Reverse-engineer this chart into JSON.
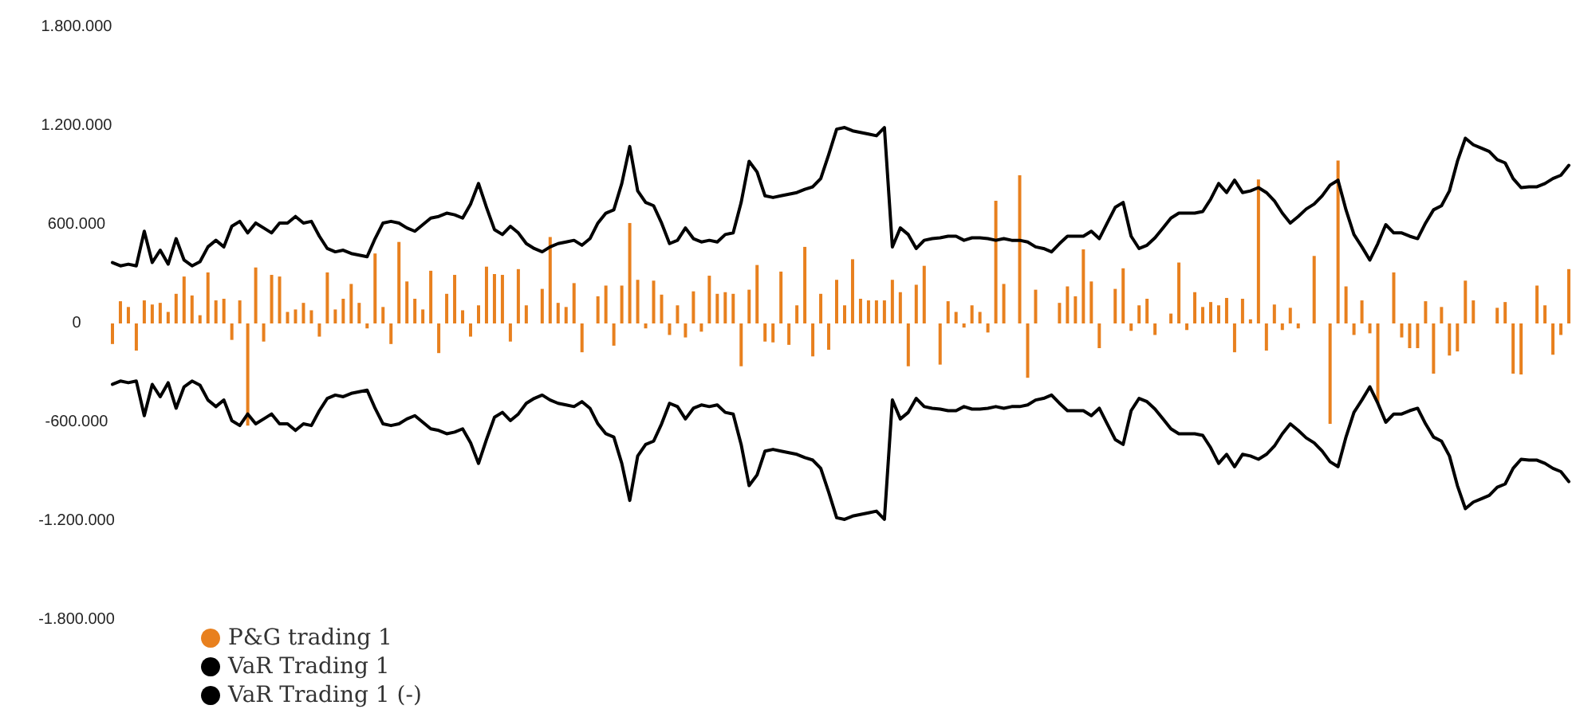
{
  "chart_data": {
    "type": "bar",
    "categories": [
      null,
      null,
      null,
      null,
      null,
      null,
      null,
      null,
      null,
      null,
      null,
      null,
      null,
      null,
      null,
      null,
      null,
      null,
      null,
      null,
      null,
      null,
      null,
      null,
      null,
      null,
      null,
      null,
      null,
      null,
      null,
      null,
      null,
      null,
      null,
      null,
      null,
      null,
      null,
      null,
      null,
      null,
      null,
      null,
      null,
      null,
      null,
      null,
      null,
      null,
      null,
      null,
      null,
      null,
      null,
      null,
      null,
      null,
      null,
      null,
      null,
      null,
      null,
      null,
      null,
      null,
      null,
      null,
      null,
      null,
      null,
      null,
      null,
      null,
      null,
      null,
      null,
      null,
      null,
      null,
      null,
      null,
      null,
      null,
      null,
      null,
      null,
      null,
      null,
      null,
      null,
      null,
      null,
      null,
      null,
      null,
      null,
      null,
      null,
      null,
      null,
      null,
      null,
      null,
      null,
      null,
      null,
      null,
      null,
      null,
      null,
      null,
      null,
      null,
      null,
      null,
      null,
      null,
      null,
      null,
      null,
      null,
      null,
      null,
      null,
      null,
      null,
      null,
      null,
      null,
      null,
      null,
      null,
      null,
      null,
      null,
      null,
      null,
      null,
      null,
      null,
      null,
      null,
      null,
      null,
      null,
      null,
      null,
      null,
      null,
      null,
      null,
      null,
      null,
      null,
      null,
      null,
      null,
      null,
      null,
      null,
      null,
      null,
      null,
      null,
      null,
      null,
      null,
      null,
      null,
      null,
      null,
      null,
      null,
      null,
      null,
      null,
      null,
      null,
      null,
      null,
      null,
      null,
      null
    ],
    "series": [
      {
        "name": "P&G trading 1",
        "color": "#e8801e",
        "values": [
          -125000,
          135000,
          100000,
          -165000,
          140000,
          115000,
          125000,
          70000,
          180000,
          285000,
          170000,
          50000,
          310000,
          140000,
          150000,
          -100000,
          140000,
          -620000,
          340000,
          -110000,
          295000,
          285000,
          70000,
          85000,
          125000,
          80000,
          -80000,
          310000,
          85000,
          150000,
          240000,
          125000,
          -30000,
          425000,
          100000,
          -125000,
          495000,
          255000,
          150000,
          85000,
          320000,
          -180000,
          180000,
          295000,
          80000,
          -80000,
          110000,
          345000,
          300000,
          295000,
          -110000,
          330000,
          110000,
          0,
          210000,
          525000,
          125000,
          100000,
          245000,
          -175000,
          0,
          165000,
          230000,
          -135000,
          230000,
          610000,
          265000,
          -30000,
          260000,
          175000,
          -70000,
          110000,
          -85000,
          195000,
          -50000,
          290000,
          180000,
          190000,
          180000,
          -260000,
          205000,
          355000,
          -110000,
          -115000,
          315000,
          -130000,
          110000,
          465000,
          -200000,
          180000,
          -160000,
          265000,
          110000,
          390000,
          150000,
          140000,
          140000,
          140000,
          265000,
          190000,
          -260000,
          235000,
          350000,
          0,
          -250000,
          135000,
          70000,
          -25000,
          110000,
          70000,
          -55000,
          745000,
          240000,
          0,
          900000,
          -330000,
          205000,
          0,
          0,
          125000,
          225000,
          165000,
          450000,
          255000,
          -150000,
          0,
          210000,
          335000,
          -45000,
          110000,
          150000,
          -70000,
          0,
          60000,
          370000,
          -40000,
          190000,
          100000,
          130000,
          110000,
          155000,
          -175000,
          150000,
          25000,
          875000,
          -165000,
          115000,
          -40000,
          95000,
          -30000,
          0,
          410000,
          0,
          -610000,
          990000,
          225000,
          -70000,
          140000,
          -60000,
          -485000,
          0,
          310000,
          -85000,
          -150000,
          -150000,
          135000,
          -305000,
          100000,
          -195000,
          -170000,
          260000,
          140000,
          0,
          0,
          95000,
          130000,
          -305000,
          -310000,
          0,
          230000,
          110000,
          -190000,
          -70000,
          330000
        ]
      },
      {
        "name": "VaR Trading 1",
        "type": "line",
        "color": "#000000",
        "values": [
          370000,
          350000,
          360000,
          350000,
          560000,
          370000,
          445000,
          360000,
          515000,
          385000,
          350000,
          375000,
          465000,
          505000,
          465000,
          590000,
          620000,
          550000,
          610000,
          580000,
          550000,
          610000,
          610000,
          650000,
          610000,
          620000,
          530000,
          455000,
          435000,
          445000,
          425000,
          415000,
          405000,
          515000,
          610000,
          620000,
          610000,
          580000,
          560000,
          600000,
          640000,
          650000,
          670000,
          660000,
          640000,
          725000,
          850000,
          705000,
          570000,
          540000,
          590000,
          550000,
          485000,
          455000,
          435000,
          465000,
          485000,
          495000,
          505000,
          475000,
          515000,
          610000,
          670000,
          690000,
          850000,
          1075000,
          805000,
          735000,
          715000,
          610000,
          485000,
          505000,
          580000,
          515000,
          495000,
          505000,
          495000,
          540000,
          550000,
          735000,
          985000,
          920000,
          775000,
          765000,
          775000,
          785000,
          795000,
          815000,
          830000,
          880000,
          1025000,
          1180000,
          1190000,
          1170000,
          1160000,
          1150000,
          1140000,
          1190000,
          465000,
          580000,
          540000,
          455000,
          505000,
          515000,
          520000,
          530000,
          530000,
          505000,
          520000,
          520000,
          515000,
          505000,
          515000,
          505000,
          505000,
          495000,
          465000,
          455000,
          435000,
          485000,
          530000,
          530000,
          530000,
          560000,
          515000,
          610000,
          705000,
          735000,
          530000,
          455000,
          475000,
          520000,
          580000,
          640000,
          670000,
          670000,
          670000,
          680000,
          755000,
          850000,
          795000,
          870000,
          795000,
          805000,
          825000,
          795000,
          745000,
          670000,
          610000,
          650000,
          695000,
          725000,
          775000,
          840000,
          870000,
          690000,
          540000,
          465000,
          385000,
          485000,
          600000,
          550000,
          550000,
          530000,
          515000,
          610000,
          690000,
          715000,
          805000,
          985000,
          1125000,
          1085000,
          1065000,
          1045000,
          995000,
          975000,
          880000,
          825000,
          830000,
          830000,
          850000,
          880000,
          900000,
          960000
        ]
      },
      {
        "name": "VaR Trading 1 (-)",
        "type": "line",
        "color": "#000000",
        "values": [
          -370000,
          -350000,
          -360000,
          -350000,
          -560000,
          -370000,
          -445000,
          -360000,
          -515000,
          -385000,
          -350000,
          -375000,
          -465000,
          -505000,
          -465000,
          -590000,
          -620000,
          -550000,
          -610000,
          -580000,
          -550000,
          -610000,
          -610000,
          -650000,
          -610000,
          -620000,
          -530000,
          -455000,
          -435000,
          -445000,
          -425000,
          -415000,
          -405000,
          -515000,
          -610000,
          -620000,
          -610000,
          -580000,
          -560000,
          -600000,
          -640000,
          -650000,
          -670000,
          -660000,
          -640000,
          -725000,
          -850000,
          -705000,
          -570000,
          -540000,
          -590000,
          -550000,
          -485000,
          -455000,
          -435000,
          -465000,
          -485000,
          -495000,
          -505000,
          -475000,
          -515000,
          -610000,
          -670000,
          -690000,
          -850000,
          -1075000,
          -805000,
          -735000,
          -715000,
          -610000,
          -485000,
          -505000,
          -580000,
          -515000,
          -495000,
          -505000,
          -495000,
          -540000,
          -550000,
          -735000,
          -985000,
          -920000,
          -775000,
          -765000,
          -775000,
          -785000,
          -795000,
          -815000,
          -830000,
          -880000,
          -1025000,
          -1180000,
          -1190000,
          -1170000,
          -1160000,
          -1150000,
          -1140000,
          -1190000,
          -465000,
          -580000,
          -540000,
          -455000,
          -505000,
          -515000,
          -520000,
          -530000,
          -530000,
          -505000,
          -520000,
          -520000,
          -515000,
          -505000,
          -515000,
          -505000,
          -505000,
          -495000,
          -465000,
          -455000,
          -435000,
          -485000,
          -530000,
          -530000,
          -530000,
          -560000,
          -515000,
          -610000,
          -705000,
          -735000,
          -530000,
          -455000,
          -475000,
          -520000,
          -580000,
          -640000,
          -670000,
          -670000,
          -670000,
          -680000,
          -755000,
          -850000,
          -795000,
          -870000,
          -795000,
          -805000,
          -825000,
          -795000,
          -745000,
          -670000,
          -610000,
          -650000,
          -695000,
          -725000,
          -775000,
          -840000,
          -870000,
          -690000,
          -540000,
          -465000,
          -385000,
          -485000,
          -600000,
          -550000,
          -550000,
          -530000,
          -515000,
          -610000,
          -690000,
          -715000,
          -805000,
          -985000,
          -1125000,
          -1085000,
          -1065000,
          -1045000,
          -995000,
          -975000,
          -880000,
          -825000,
          -830000,
          -830000,
          -850000,
          -880000,
          -900000,
          -960000
        ]
      }
    ],
    "ylim": [
      -1800000,
      1800000
    ],
    "yticks": [
      {
        "value": -1800000,
        "label": "-1.800.000"
      },
      {
        "value": -1200000,
        "label": "-1.200.000"
      },
      {
        "value": -600000,
        "label": "-600.000"
      },
      {
        "value": 0,
        "label": "0"
      },
      {
        "value": 600000,
        "label": "600.000"
      },
      {
        "value": 1200000,
        "label": "1.200.000"
      },
      {
        "value": 1800000,
        "label": "1.800.000"
      }
    ],
    "grid": false,
    "legend": "bottom left",
    "tick_labels": "y"
  }
}
